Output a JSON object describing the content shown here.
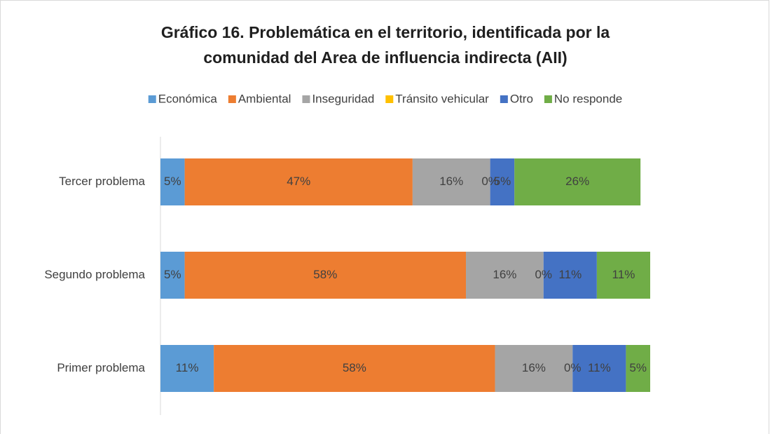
{
  "chart_data": {
    "type": "bar",
    "orientation": "horizontal",
    "stacked": true,
    "title": [
      "Gráfico 16. Problemática en el territorio, identificada por la",
      "comunidad del Area de influencia indirecta (AII)"
    ],
    "categories": [
      "Tercer problema",
      "Segundo problema",
      "Primer problema"
    ],
    "series": [
      {
        "name": "Económica",
        "color": "#5b9bd5",
        "values": [
          5,
          5,
          11
        ],
        "value_labels": [
          "5%",
          "5%",
          "11%"
        ]
      },
      {
        "name": "Ambiental",
        "color": "#ed7d31",
        "values": [
          47,
          58,
          58
        ],
        "value_labels": [
          "47%",
          "58%",
          "58%"
        ]
      },
      {
        "name": "Inseguridad",
        "color": "#a5a5a5",
        "values": [
          16,
          16,
          16
        ],
        "value_labels": [
          "16%",
          "16%",
          "16%"
        ]
      },
      {
        "name": "Tránsito vehicular",
        "color": "#ffc000",
        "values": [
          0,
          0,
          0
        ],
        "value_labels": [
          "0%",
          "0%",
          "0%"
        ]
      },
      {
        "name": "Otro",
        "color": "#4472c4",
        "values": [
          5,
          11,
          11
        ],
        "value_labels": [
          "5%",
          "11%",
          "11%"
        ]
      },
      {
        "name": "No responde",
        "color": "#70ad47",
        "values": [
          26,
          11,
          5
        ],
        "value_labels": [
          "26%",
          "11%",
          "5%"
        ]
      }
    ],
    "legend": "top"
  }
}
